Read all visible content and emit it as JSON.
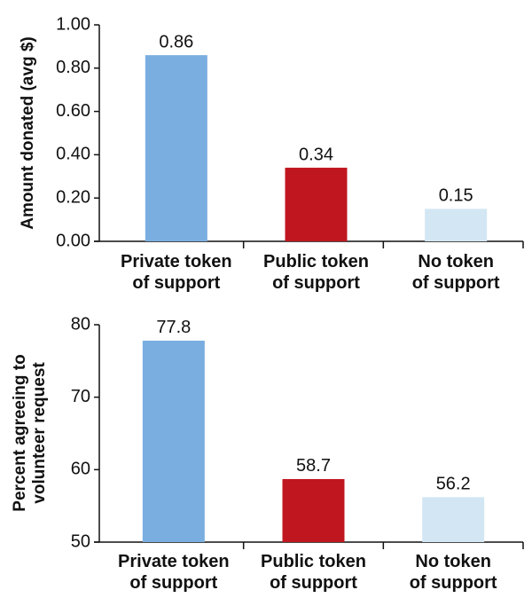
{
  "chart_data": [
    {
      "type": "bar",
      "y_label": "Amount donated (avg $)",
      "categories": [
        "Private token\nof support",
        "Public token\nof support",
        "No token\nof support"
      ],
      "values": [
        0.86,
        0.34,
        0.15
      ],
      "colors": [
        "#7aaee0",
        "#c0161f",
        "#d3e6f3"
      ],
      "ylim": [
        0,
        1
      ],
      "yticks": [
        {
          "value": 0,
          "label": "0.00"
        },
        {
          "value": 0.2,
          "label": "0.20"
        },
        {
          "value": 0.4,
          "label": "0.40"
        },
        {
          "value": 0.6,
          "label": "0.60"
        },
        {
          "value": 0.8,
          "label": "0.80"
        },
        {
          "value": 1,
          "label": "1.00"
        }
      ]
    },
    {
      "type": "bar",
      "y_label": "Percent agreeing to\nvolunteer request",
      "categories": [
        "Private token\nof support",
        "Public token\nof support",
        "No token\nof support"
      ],
      "values": [
        77.8,
        58.7,
        56.2
      ],
      "colors": [
        "#7aaee0",
        "#c0161f",
        "#d3e6f3"
      ],
      "ylim": [
        50,
        80
      ],
      "yticks": [
        50,
        60,
        70,
        80
      ]
    }
  ]
}
